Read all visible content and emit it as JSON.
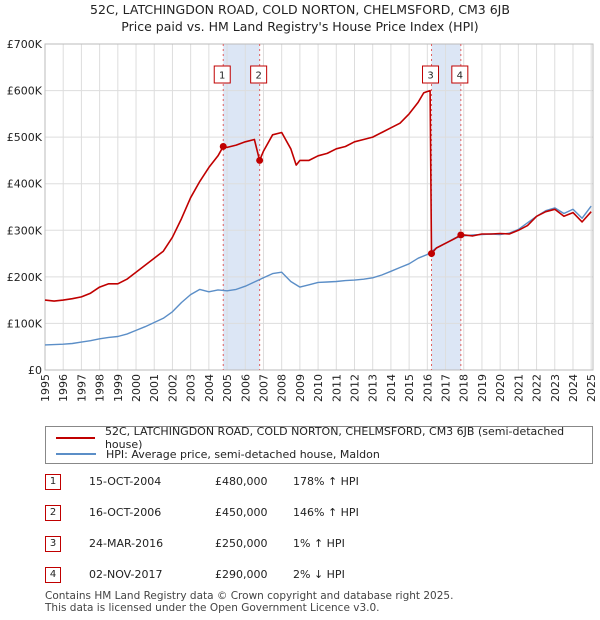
{
  "header": {
    "title": "52C, LATCHINGDON ROAD, COLD NORTON, CHELMSFORD, CM3 6JB",
    "subtitle": "Price paid vs. HM Land Registry's House Price Index (HPI)"
  },
  "colors": {
    "property": "#c00000",
    "hpi": "#5b8ec7",
    "band": "#dce6f5",
    "grid": "#dddddd"
  },
  "chart_data": {
    "type": "line",
    "title": "52C, LATCHINGDON ROAD, COLD NORTON, CHELMSFORD, CM3 6JB",
    "subtitle": "Price paid vs. HM Land Registry's House Price Index (HPI)",
    "xlim": [
      1995,
      2025.1
    ],
    "ylim": [
      0,
      700000
    ],
    "y_ticks": [
      0,
      100000,
      200000,
      300000,
      400000,
      500000,
      600000,
      700000
    ],
    "y_tick_labels": [
      "£0",
      "£100K",
      "£200K",
      "£300K",
      "£400K",
      "£500K",
      "£600K",
      "£700K"
    ],
    "x_ticks": [
      "1995",
      "1996",
      "1997",
      "1998",
      "1999",
      "2000",
      "2001",
      "2002",
      "2003",
      "2004",
      "2005",
      "2006",
      "2007",
      "2008",
      "2009",
      "2010",
      "2011",
      "2012",
      "2013",
      "2014",
      "2015",
      "2016",
      "2017",
      "2018",
      "2019",
      "2020",
      "2021",
      "2022",
      "2023",
      "2024",
      "2025"
    ],
    "grid": true,
    "series": [
      {
        "name": "52C, LATCHINGDON ROAD, COLD NORTON, CHELMSFORD, CM3 6JB (semi-detached house)",
        "color": "#c00000",
        "x": [
          1995.0,
          1995.5,
          1996.0,
          1996.5,
          1997.0,
          1997.5,
          1998.0,
          1998.5,
          1999.0,
          1999.5,
          2000.0,
          2000.5,
          2001.0,
          2001.5,
          2002.0,
          2002.5,
          2003.0,
          2003.5,
          2004.0,
          2004.5,
          2004.79,
          2005.0,
          2005.5,
          2006.0,
          2006.5,
          2006.79,
          2007.0,
          2007.5,
          2008.0,
          2008.5,
          2008.8,
          2009.0,
          2009.5,
          2010.0,
          2010.5,
          2011.0,
          2011.5,
          2012.0,
          2012.5,
          2013.0,
          2013.5,
          2014.0,
          2014.5,
          2015.0,
          2015.5,
          2015.8,
          2016.0,
          2016.15,
          2016.23,
          2016.5,
          2017.0,
          2017.5,
          2017.84,
          2018.0,
          2018.5,
          2019.0,
          2019.5,
          2020.0,
          2020.5,
          2021.0,
          2021.5,
          2022.0,
          2022.5,
          2023.0,
          2023.5,
          2024.0,
          2024.5,
          2025.0
        ],
        "values": [
          150000,
          148000,
          150000,
          153000,
          157000,
          165000,
          178000,
          185000,
          185000,
          195000,
          210000,
          225000,
          240000,
          255000,
          285000,
          325000,
          370000,
          405000,
          435000,
          460000,
          480000,
          478000,
          483000,
          490000,
          495000,
          450000,
          470000,
          505000,
          510000,
          475000,
          440000,
          450000,
          450000,
          460000,
          465000,
          475000,
          480000,
          490000,
          495000,
          500000,
          510000,
          520000,
          530000,
          550000,
          575000,
          595000,
          598000,
          600000,
          250000,
          262000,
          272000,
          282000,
          290000,
          290000,
          288000,
          292000,
          292000,
          293000,
          292000,
          300000,
          310000,
          330000,
          340000,
          345000,
          330000,
          338000,
          318000,
          340000
        ]
      },
      {
        "name": "HPI: Average price, semi-detached house, Maldon",
        "color": "#5b8ec7",
        "x": [
          1995.0,
          1995.5,
          1996.0,
          1996.5,
          1997.0,
          1997.5,
          1998.0,
          1998.5,
          1999.0,
          1999.5,
          2000.0,
          2000.5,
          2001.0,
          2001.5,
          2002.0,
          2002.5,
          2003.0,
          2003.5,
          2004.0,
          2004.5,
          2005.0,
          2005.5,
          2006.0,
          2006.5,
          2007.0,
          2007.5,
          2008.0,
          2008.5,
          2009.0,
          2009.5,
          2010.0,
          2010.5,
          2011.0,
          2011.5,
          2012.0,
          2012.5,
          2013.0,
          2013.5,
          2014.0,
          2014.5,
          2015.0,
          2015.5,
          2016.0,
          2016.5,
          2017.0,
          2017.5,
          2018.0,
          2018.5,
          2019.0,
          2019.5,
          2020.0,
          2020.5,
          2021.0,
          2021.5,
          2022.0,
          2022.5,
          2023.0,
          2023.5,
          2024.0,
          2024.5,
          2025.0
        ],
        "values": [
          54000,
          54500,
          55500,
          57000,
          60000,
          63000,
          67000,
          70000,
          72000,
          77000,
          85000,
          93000,
          102000,
          111000,
          125000,
          145000,
          162000,
          173000,
          168000,
          172000,
          170000,
          173000,
          180000,
          189000,
          198000,
          207000,
          210000,
          190000,
          178000,
          183000,
          188000,
          189000,
          190000,
          192000,
          193000,
          195000,
          198000,
          204000,
          212000,
          220000,
          228000,
          240000,
          248000,
          262000,
          272000,
          283000,
          288000,
          290000,
          291000,
          292000,
          291000,
          294000,
          302000,
          316000,
          330000,
          342000,
          348000,
          336000,
          345000,
          326000,
          352000
        ]
      }
    ],
    "sales": [
      {
        "id": "1",
        "x": 2004.79,
        "value": 480000
      },
      {
        "id": "2",
        "x": 2006.79,
        "value": 450000
      },
      {
        "id": "3",
        "x": 2016.23,
        "value": 250000
      },
      {
        "id": "4",
        "x": 2017.84,
        "value": 290000
      }
    ],
    "bands": [
      [
        2004.79,
        2006.79
      ],
      [
        2016.23,
        2017.84
      ]
    ]
  },
  "legend": {
    "property_label": "52C, LATCHINGDON ROAD, COLD NORTON, CHELMSFORD, CM3 6JB (semi-detached house)",
    "hpi_label": "HPI: Average price, semi-detached house, Maldon"
  },
  "sales_table": [
    {
      "id": "1",
      "date": "15-OCT-2004",
      "price": "£480,000",
      "hpi": "178% ↑ HPI"
    },
    {
      "id": "2",
      "date": "16-OCT-2006",
      "price": "£450,000",
      "hpi": "146% ↑ HPI"
    },
    {
      "id": "3",
      "date": "24-MAR-2016",
      "price": "£250,000",
      "hpi": "1% ↑ HPI"
    },
    {
      "id": "4",
      "date": "02-NOV-2017",
      "price": "£290,000",
      "hpi": "2% ↓ HPI"
    }
  ],
  "footer": {
    "line1": "Contains HM Land Registry data © Crown copyright and database right 2025.",
    "line2": "This data is licensed under the Open Government Licence v3.0."
  }
}
